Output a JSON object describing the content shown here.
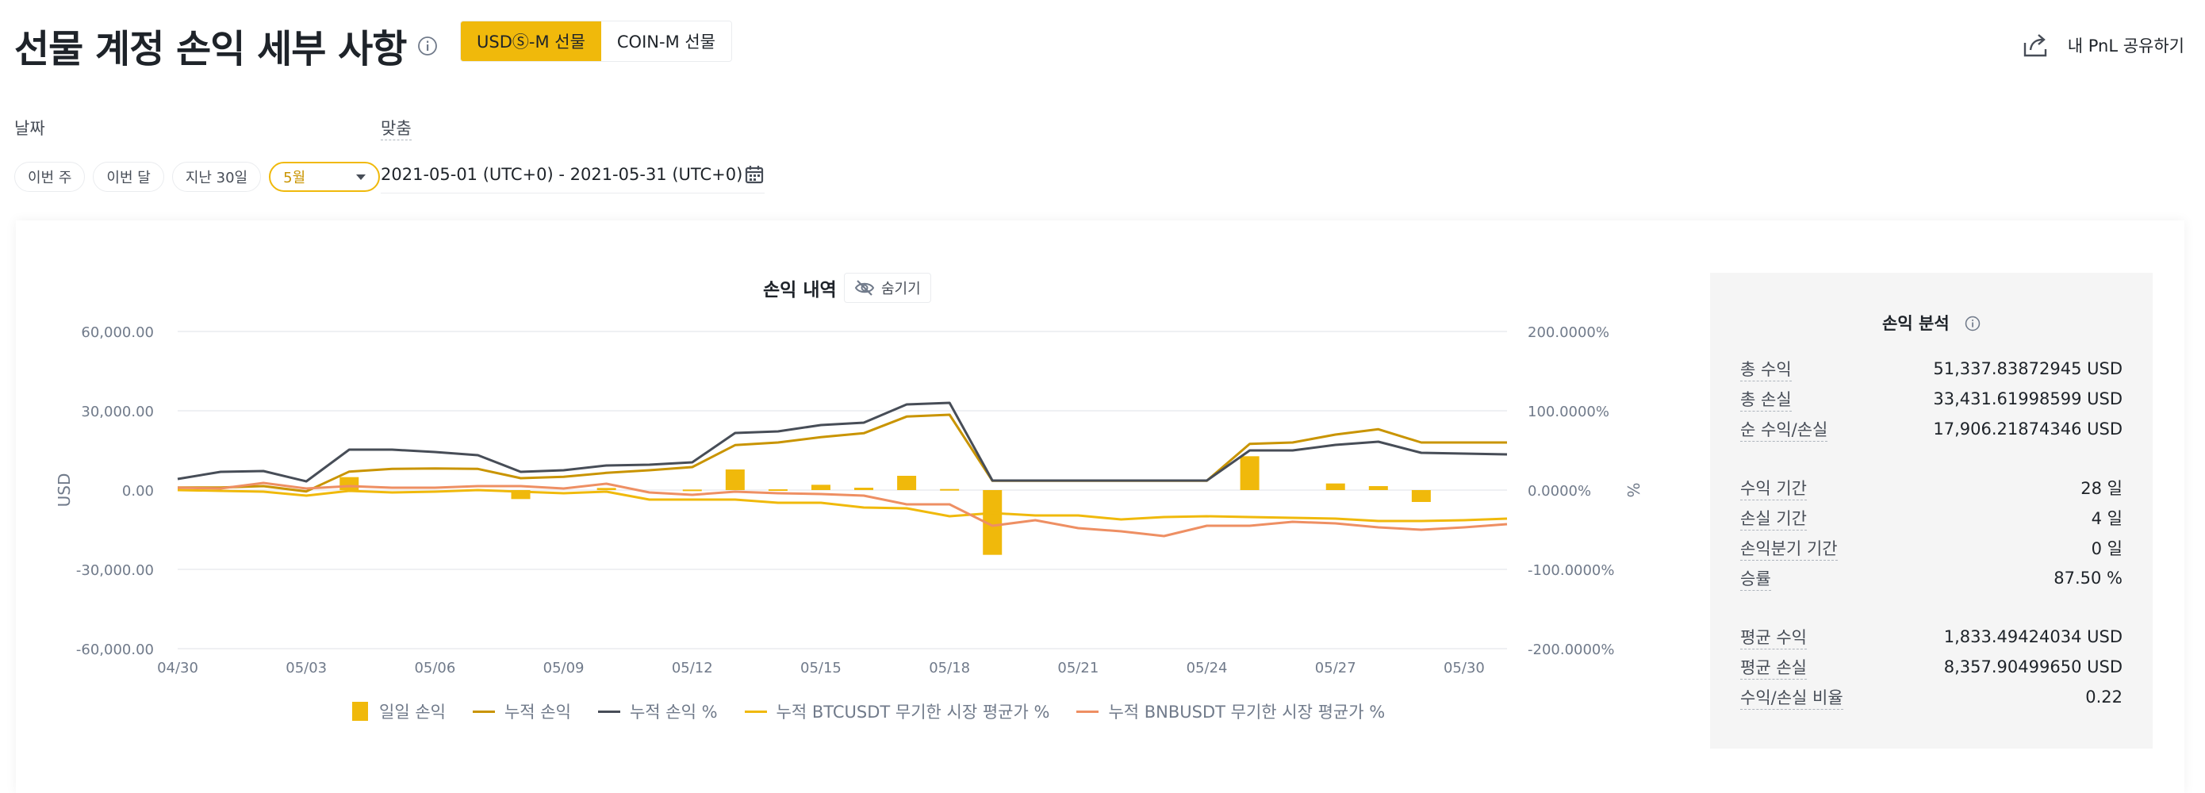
{
  "header": {
    "title": "선물 계정 손익 세부 사항",
    "tabs": [
      {
        "label": "USDⓈ-M 선물",
        "active": true
      },
      {
        "label": "COIN-M 선물",
        "active": false
      }
    ],
    "share_label": "내 PnL 공유하기"
  },
  "filters": {
    "date_label": "날짜",
    "custom_label": "맞춤",
    "pills": [
      "이번 주",
      "이번 달",
      "지난 30일"
    ],
    "month_select": "5월",
    "date_range": "2021-05-01 (UTC+0) - 2021-05-31 (UTC+0)"
  },
  "chart": {
    "title": "손익 내역",
    "hide_label": "숨기기"
  },
  "chart_data": {
    "type": "bar",
    "title": "손익 내역",
    "ylabel": "USD",
    "y2label": "%",
    "ylim": [
      -60000,
      60000
    ],
    "y2lim": [
      -200,
      200
    ],
    "y_ticks": [
      "60,000.00",
      "30,000.00",
      "0.00",
      "-30,000.00",
      "-60,000.00"
    ],
    "y2_ticks": [
      "200.0000%",
      "100.0000%",
      "0.0000%",
      "-100.0000%",
      "-200.0000%"
    ],
    "x_ticks": [
      "04/30",
      "05/03",
      "05/06",
      "05/09",
      "05/12",
      "05/15",
      "05/18",
      "05/21",
      "05/24",
      "05/27",
      "05/30"
    ],
    "x": [
      "04/30",
      "05/01",
      "05/02",
      "05/03",
      "05/04",
      "05/05",
      "05/06",
      "05/07",
      "05/08",
      "05/09",
      "05/10",
      "05/11",
      "05/12",
      "05/13",
      "05/14",
      "05/15",
      "05/16",
      "05/17",
      "05/18",
      "05/19",
      "05/20",
      "05/21",
      "05/22",
      "05/23",
      "05/24",
      "05/25",
      "05/26",
      "05/27",
      "05/28",
      "05/29",
      "05/30",
      "05/31"
    ],
    "series": [
      {
        "name": "일일 손익",
        "kind": "bar",
        "axis": "left",
        "values": [
          0,
          0,
          0,
          0,
          4900,
          0,
          0,
          0,
          -3400,
          0,
          800,
          0,
          200,
          7800,
          300,
          2000,
          900,
          5400,
          400,
          -24500,
          0,
          0,
          0,
          0,
          0,
          12800,
          0,
          2500,
          1500,
          -4500,
          0,
          0
        ]
      },
      {
        "name": "누적 손익",
        "kind": "line",
        "axis": "left",
        "color": "#c99400",
        "values": [
          1000,
          1000,
          1500,
          -500,
          7000,
          8000,
          8200,
          8000,
          4500,
          5000,
          6500,
          7500,
          8700,
          17000,
          18000,
          20000,
          21500,
          27800,
          28500,
          3500,
          3500,
          3500,
          3500,
          3500,
          3500,
          17500,
          18000,
          21000,
          23000,
          18000,
          18000,
          18000
        ]
      },
      {
        "name": "누적 손익 %",
        "kind": "line",
        "axis": "right",
        "color": "#474d57",
        "values": [
          14,
          23,
          24,
          11,
          51,
          51,
          48,
          44,
          23,
          25,
          31,
          32,
          35,
          72,
          74,
          82,
          85,
          108,
          110,
          12,
          12,
          12,
          12,
          12,
          12,
          50,
          50,
          57,
          61,
          47,
          46,
          45
        ]
      },
      {
        "name": "누적 BTCUSDT 무기한 시장 평균가 %",
        "kind": "line",
        "axis": "right",
        "color": "#f0b90b",
        "values": [
          0,
          -1,
          -2,
          -7,
          -1,
          -3,
          -2,
          0,
          -2,
          -4,
          -2,
          -12,
          -12,
          -12,
          -16,
          -16,
          -22,
          -23,
          -33,
          -29,
          -32,
          -32,
          -37,
          -34,
          -33,
          -34,
          -35,
          -36,
          -39,
          -39,
          -38,
          -36
        ]
      },
      {
        "name": "누적 BNBUSDT 무기한 시장 평균가 %",
        "kind": "line",
        "axis": "right",
        "color": "#ee8f63",
        "values": [
          3,
          2,
          9,
          2,
          5,
          3,
          3,
          5,
          5,
          2,
          8,
          -3,
          -6,
          -2,
          -4,
          -5,
          -7,
          -18,
          -18,
          -45,
          -38,
          -48,
          -52,
          -58,
          -45,
          -45,
          -40,
          -42,
          -47,
          -50,
          -47,
          -43
        ]
      }
    ],
    "legend": [
      "일일 손익",
      "누적 손익",
      "누적 손익 %",
      "누적 BTCUSDT 무기한 시장 평균가 %",
      "누적 BNBUSDT 무기한 시장 평균가 %"
    ],
    "legend_position": "bottom-center"
  },
  "analysis": {
    "title": "손익 분석",
    "groups": [
      [
        {
          "label": "총 수익",
          "value": "51,337.83872945 USD"
        },
        {
          "label": "총 손실",
          "value": "33,431.61998599 USD"
        },
        {
          "label": "순 수익/손실",
          "value": "17,906.21874346 USD"
        }
      ],
      [
        {
          "label": "수익 기간",
          "value": "28 일"
        },
        {
          "label": "손실 기간",
          "value": "4 일"
        },
        {
          "label": "손익분기 기간",
          "value": "0 일"
        },
        {
          "label": "승률",
          "value": "87.50 %"
        }
      ],
      [
        {
          "label": "평균 수익",
          "value": "1,833.49424034 USD"
        },
        {
          "label": "평균 손실",
          "value": "8,357.90499650 USD"
        },
        {
          "label": "수익/손실 비율",
          "value": "0.22"
        }
      ]
    ]
  },
  "colors": {
    "accent": "#f0b90b",
    "accent_dark": "#c99400",
    "text": "#1e2329",
    "muted": "#707a8a"
  }
}
